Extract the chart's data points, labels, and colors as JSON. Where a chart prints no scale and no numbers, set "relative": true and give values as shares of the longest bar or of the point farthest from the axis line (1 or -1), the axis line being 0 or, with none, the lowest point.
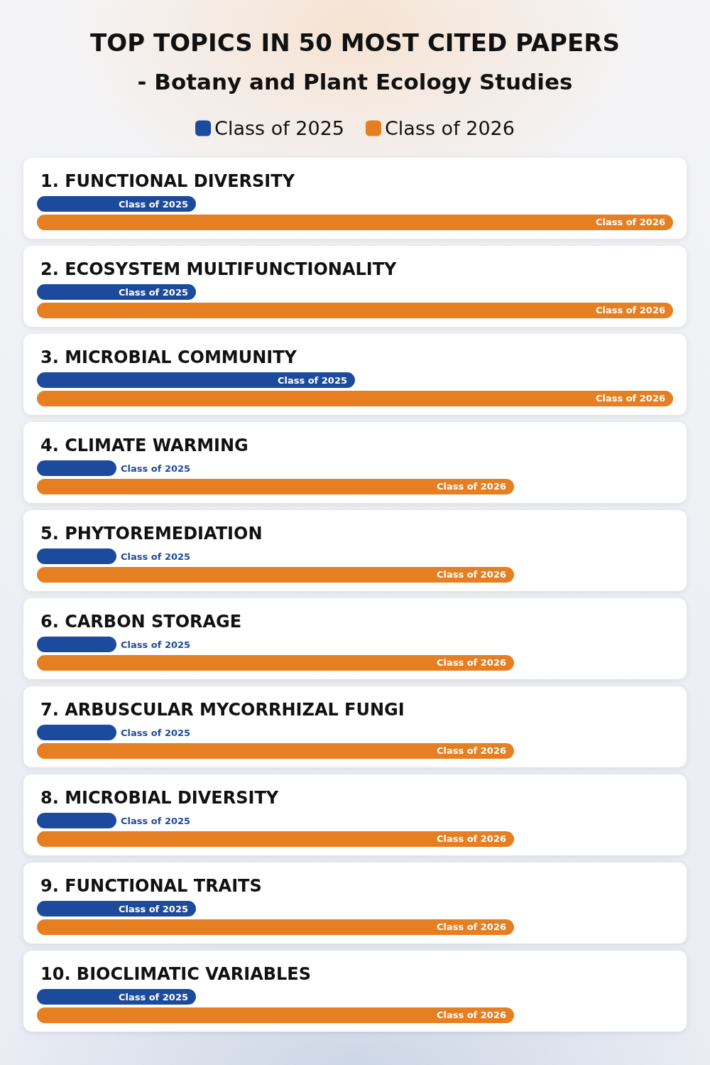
{
  "chart_data": {
    "type": "bar",
    "orientation": "horizontal",
    "relative": true,
    "title": "TOP TOPICS IN 50 MOST CITED PAPERS",
    "subtitle": "- Botany and Plant Ecology Studies",
    "legend": "top",
    "categories": [
      "1. FUNCTIONAL DIVERSITY",
      "2. ECOSYSTEM MULTIFUNCTIONALITY",
      "3. MICROBIAL COMMUNITY",
      "4. CLIMATE WARMING",
      "5. PHYTOREMEDIATION",
      "6. CARBON STORAGE",
      "7. ARBUSCULAR MYCORRHIZAL FUNGI",
      "8. MICROBIAL DIVERSITY",
      "9. FUNCTIONAL TRAITS",
      "10. BIOCLIMATIC VARIABLES"
    ],
    "series": [
      {
        "name": "Class of 2025",
        "color": "#1c4a9c",
        "values": [
          0.25,
          0.25,
          0.5,
          0.125,
          0.125,
          0.125,
          0.125,
          0.125,
          0.25,
          0.25
        ]
      },
      {
        "name": "Class of 2026",
        "color": "#e67e22",
        "values": [
          1,
          1,
          1,
          0.75,
          0.75,
          0.75,
          0.75,
          0.75,
          0.75,
          0.75
        ]
      }
    ]
  }
}
